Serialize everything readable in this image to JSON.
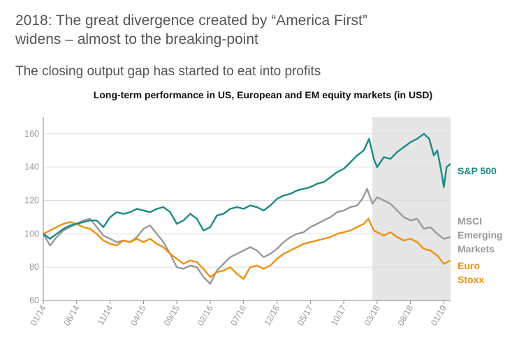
{
  "header": {
    "title_line1": "2018: The great divergence created by “America First”",
    "title_line2": "widens – almost to the breaking-point",
    "subtitle": "The closing output gap has started to eat into profits"
  },
  "colors": {
    "sp500": "#1a8a82",
    "msci_em": "#999999",
    "euro_stoxx": "#f0900f",
    "shade": "#e6e6e6",
    "axis": "#888888",
    "grid": "#dddddd"
  },
  "chart_data": {
    "type": "line",
    "title": "Long-term performance in US, European and EM equity markets (in USD)",
    "xlabel": "",
    "ylabel": "",
    "ylim": [
      60,
      170
    ],
    "yticks": [
      60,
      80,
      100,
      120,
      140,
      160
    ],
    "xlim": [
      0,
      61
    ],
    "x_ticks": [
      {
        "x": 0,
        "label": "01/14"
      },
      {
        "x": 5,
        "label": "06/14"
      },
      {
        "x": 10,
        "label": "11/14"
      },
      {
        "x": 15,
        "label": "04/15"
      },
      {
        "x": 20,
        "label": "09/15"
      },
      {
        "x": 25,
        "label": "02/16"
      },
      {
        "x": 30,
        "label": "07/16"
      },
      {
        "x": 35,
        "label": "12/16"
      },
      {
        "x": 40,
        "label": "05/17"
      },
      {
        "x": 45,
        "label": "10/17"
      },
      {
        "x": 50,
        "label": "03/18"
      },
      {
        "x": 55,
        "label": "08/18"
      },
      {
        "x": 60,
        "label": "01/19"
      }
    ],
    "shaded_region": {
      "x_start": 49.3,
      "x_end": 61
    },
    "grid": true,
    "series": [
      {
        "name": "S&P 500",
        "legend": [
          "S&P 500"
        ],
        "color": "#1a8a82",
        "points": [
          [
            0,
            100
          ],
          [
            1,
            97
          ],
          [
            2,
            100
          ],
          [
            3,
            103
          ],
          [
            4,
            105
          ],
          [
            5,
            106
          ],
          [
            6,
            107
          ],
          [
            7,
            108
          ],
          [
            8,
            108
          ],
          [
            9,
            104
          ],
          [
            10,
            110
          ],
          [
            11,
            113
          ],
          [
            12,
            112
          ],
          [
            13,
            113
          ],
          [
            14,
            115
          ],
          [
            15,
            114
          ],
          [
            16,
            113
          ],
          [
            17,
            115
          ],
          [
            18,
            116
          ],
          [
            19,
            113
          ],
          [
            20,
            106
          ],
          [
            21,
            108
          ],
          [
            22,
            112
          ],
          [
            23,
            109
          ],
          [
            24,
            102
          ],
          [
            25,
            104
          ],
          [
            26,
            111
          ],
          [
            27,
            112
          ],
          [
            28,
            115
          ],
          [
            29,
            116
          ],
          [
            30,
            115
          ],
          [
            31,
            117
          ],
          [
            32,
            116
          ],
          [
            33,
            114
          ],
          [
            34,
            117
          ],
          [
            35,
            121
          ],
          [
            36,
            123
          ],
          [
            37,
            124
          ],
          [
            38,
            126
          ],
          [
            39,
            127
          ],
          [
            40,
            128
          ],
          [
            41,
            130
          ],
          [
            42,
            131
          ],
          [
            43,
            134
          ],
          [
            44,
            137
          ],
          [
            45,
            139
          ],
          [
            46,
            143
          ],
          [
            47,
            147
          ],
          [
            48,
            150
          ],
          [
            48.8,
            157
          ],
          [
            49.5,
            145
          ],
          [
            50,
            140
          ],
          [
            51,
            146
          ],
          [
            52,
            145
          ],
          [
            53,
            149
          ],
          [
            54,
            152
          ],
          [
            55,
            155
          ],
          [
            56,
            157
          ],
          [
            57,
            160
          ],
          [
            57.8,
            157
          ],
          [
            58.5,
            147
          ],
          [
            59,
            150
          ],
          [
            59.5,
            140
          ],
          [
            60,
            128
          ],
          [
            60.4,
            140
          ],
          [
            61,
            142
          ]
        ]
      },
      {
        "name": "MSCI Emerging Markets",
        "legend": [
          "MSCI",
          "Emerging",
          "Markets"
        ],
        "color": "#999999",
        "points": [
          [
            0,
            100
          ],
          [
            1,
            93
          ],
          [
            2,
            98
          ],
          [
            3,
            102
          ],
          [
            4,
            104
          ],
          [
            5,
            106
          ],
          [
            6,
            108
          ],
          [
            7,
            109
          ],
          [
            8,
            104
          ],
          [
            9,
            99
          ],
          [
            10,
            97
          ],
          [
            11,
            95
          ],
          [
            12,
            96
          ],
          [
            13,
            95
          ],
          [
            14,
            98
          ],
          [
            15,
            103
          ],
          [
            16,
            105
          ],
          [
            17,
            100
          ],
          [
            18,
            95
          ],
          [
            19,
            88
          ],
          [
            20,
            80
          ],
          [
            21,
            79
          ],
          [
            22,
            81
          ],
          [
            23,
            80
          ],
          [
            24,
            74
          ],
          [
            25,
            70
          ],
          [
            26,
            78
          ],
          [
            27,
            82
          ],
          [
            28,
            86
          ],
          [
            29,
            88
          ],
          [
            30,
            90
          ],
          [
            31,
            92
          ],
          [
            32,
            90
          ],
          [
            33,
            86
          ],
          [
            34,
            88
          ],
          [
            35,
            91
          ],
          [
            36,
            95
          ],
          [
            37,
            98
          ],
          [
            38,
            100
          ],
          [
            39,
            101
          ],
          [
            40,
            104
          ],
          [
            41,
            106
          ],
          [
            42,
            108
          ],
          [
            43,
            110
          ],
          [
            44,
            113
          ],
          [
            45,
            114
          ],
          [
            46,
            116
          ],
          [
            47,
            117
          ],
          [
            47.8,
            121
          ],
          [
            48.5,
            127
          ],
          [
            49.3,
            118
          ],
          [
            50,
            122
          ],
          [
            51,
            120
          ],
          [
            52,
            118
          ],
          [
            53,
            114
          ],
          [
            54,
            110
          ],
          [
            55,
            108
          ],
          [
            56,
            109
          ],
          [
            57,
            103
          ],
          [
            58,
            104
          ],
          [
            59,
            100
          ],
          [
            60,
            97
          ],
          [
            61,
            98
          ]
        ]
      },
      {
        "name": "Euro Stoxx",
        "legend": [
          "Euro",
          "Stoxx"
        ],
        "color": "#f0900f",
        "points": [
          [
            0,
            100
          ],
          [
            1,
            102
          ],
          [
            2,
            104
          ],
          [
            3,
            106
          ],
          [
            4,
            107
          ],
          [
            5,
            106
          ],
          [
            6,
            104
          ],
          [
            7,
            103
          ],
          [
            8,
            100
          ],
          [
            9,
            96
          ],
          [
            10,
            94
          ],
          [
            11,
            93
          ],
          [
            12,
            96
          ],
          [
            13,
            95
          ],
          [
            14,
            97
          ],
          [
            15,
            95
          ],
          [
            16,
            97
          ],
          [
            17,
            94
          ],
          [
            18,
            92
          ],
          [
            19,
            88
          ],
          [
            20,
            85
          ],
          [
            21,
            82
          ],
          [
            22,
            84
          ],
          [
            23,
            83
          ],
          [
            24,
            79
          ],
          [
            25,
            74
          ],
          [
            26,
            77
          ],
          [
            27,
            78
          ],
          [
            28,
            80
          ],
          [
            29,
            76
          ],
          [
            30,
            73
          ],
          [
            31,
            80
          ],
          [
            32,
            81
          ],
          [
            33,
            79
          ],
          [
            34,
            81
          ],
          [
            35,
            85
          ],
          [
            36,
            88
          ],
          [
            37,
            90
          ],
          [
            38,
            92
          ],
          [
            39,
            94
          ],
          [
            40,
            95
          ],
          [
            41,
            96
          ],
          [
            42,
            97
          ],
          [
            43,
            98
          ],
          [
            44,
            100
          ],
          [
            45,
            101
          ],
          [
            46,
            102
          ],
          [
            47,
            104
          ],
          [
            48,
            106
          ],
          [
            48.7,
            109
          ],
          [
            49.5,
            102
          ],
          [
            50,
            101
          ],
          [
            51,
            99
          ],
          [
            52,
            101
          ],
          [
            53,
            98
          ],
          [
            54,
            96
          ],
          [
            55,
            97
          ],
          [
            56,
            95
          ],
          [
            57,
            91
          ],
          [
            58,
            90
          ],
          [
            59,
            87
          ],
          [
            60,
            82
          ],
          [
            61,
            84
          ]
        ]
      }
    ]
  }
}
